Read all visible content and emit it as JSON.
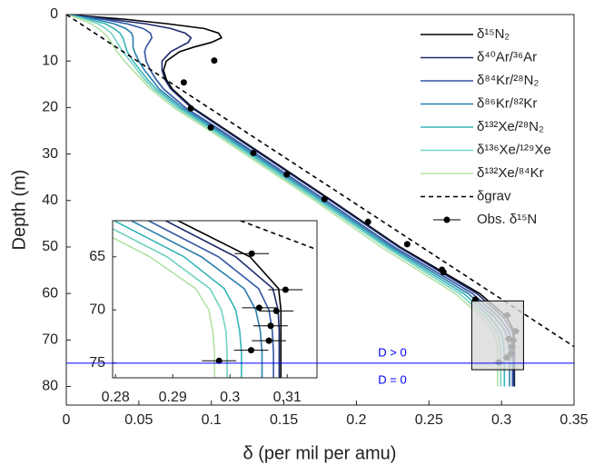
{
  "chart_data": {
    "type": "line",
    "xlabel": "δ (per mil per amu)",
    "ylabel": "Depth (m)",
    "xlim": [
      0,
      0.35
    ],
    "ylim": [
      0,
      84
    ],
    "y_inverted": true,
    "xticks": [
      0,
      0.05,
      0.1,
      0.15,
      0.2,
      0.25,
      0.3,
      0.35
    ],
    "yticks": [
      0,
      10,
      20,
      30,
      40,
      50,
      60,
      70,
      80
    ],
    "legend": "upper right",
    "grid": false,
    "y": [
      0,
      1,
      2,
      3,
      4,
      5,
      6,
      7,
      8,
      10,
      12,
      14,
      16,
      20,
      25,
      30,
      40,
      50,
      60,
      65,
      68,
      70,
      72,
      74,
      76,
      80
    ],
    "series": [
      {
        "name": "δ¹⁵N₂",
        "color": "#000000",
        "values": [
          0,
          0.04,
          0.07,
          0.095,
          0.105,
          0.107,
          0.1,
          0.088,
          0.078,
          0.069,
          0.067,
          0.069,
          0.073,
          0.087,
          0.111,
          0.135,
          0.183,
          0.23,
          0.285,
          0.3035,
          0.3085,
          0.3089,
          0.3089,
          0.3089,
          0.3089,
          0.3089
        ]
      },
      {
        "name": "δ⁴⁰Ar/³⁶Ar",
        "color": "#1c2a6b",
        "values": [
          0,
          0.03,
          0.055,
          0.072,
          0.082,
          0.086,
          0.084,
          0.078,
          0.072,
          0.066,
          0.066,
          0.068,
          0.072,
          0.086,
          0.11,
          0.134,
          0.182,
          0.229,
          0.283,
          0.301,
          0.3075,
          0.3084,
          0.3086,
          0.3086,
          0.3086,
          0.3086
        ]
      },
      {
        "name": "δ⁸⁴Kr/²⁸N₂",
        "color": "#2f55a4",
        "values": [
          0,
          0.025,
          0.042,
          0.053,
          0.058,
          0.059,
          0.057,
          0.055,
          0.054,
          0.055,
          0.058,
          0.062,
          0.067,
          0.082,
          0.107,
          0.131,
          0.179,
          0.226,
          0.28,
          0.298,
          0.305,
          0.3068,
          0.3074,
          0.3076,
          0.3076,
          0.3076
        ]
      },
      {
        "name": "δ⁸⁶Kr/⁸²Kr",
        "color": "#2a7fae",
        "values": [
          0,
          0.02,
          0.033,
          0.041,
          0.045,
          0.046,
          0.046,
          0.046,
          0.047,
          0.05,
          0.054,
          0.059,
          0.064,
          0.08,
          0.105,
          0.129,
          0.177,
          0.224,
          0.277,
          0.295,
          0.3025,
          0.3045,
          0.3053,
          0.3056,
          0.3056,
          0.3056
        ]
      },
      {
        "name": "δ¹³²Xe/²⁸N₂",
        "color": "#35b4b8",
        "values": [
          0,
          0.016,
          0.027,
          0.033,
          0.037,
          0.039,
          0.04,
          0.041,
          0.042,
          0.046,
          0.051,
          0.056,
          0.062,
          0.078,
          0.103,
          0.127,
          0.175,
          0.222,
          0.274,
          0.292,
          0.299,
          0.301,
          0.3017,
          0.302,
          0.302,
          0.302
        ]
      },
      {
        "name": "δ¹³⁶Xe/¹²⁹Xe",
        "color": "#72d2c2",
        "values": [
          0,
          0.013,
          0.022,
          0.027,
          0.031,
          0.033,
          0.035,
          0.037,
          0.039,
          0.044,
          0.049,
          0.054,
          0.06,
          0.076,
          0.101,
          0.125,
          0.173,
          0.22,
          0.271,
          0.289,
          0.2965,
          0.2985,
          0.2993,
          0.2995,
          0.2995,
          0.2995
        ]
      },
      {
        "name": "δ¹³²Xe/⁸⁴Kr",
        "color": "#b5e2a4",
        "values": [
          0,
          0.01,
          0.017,
          0.022,
          0.026,
          0.029,
          0.031,
          0.033,
          0.035,
          0.04,
          0.046,
          0.052,
          0.058,
          0.074,
          0.099,
          0.123,
          0.171,
          0.217,
          0.268,
          0.286,
          0.294,
          0.2963,
          0.297,
          0.2973,
          0.2973,
          0.2973
        ]
      },
      {
        "name": "δgrav",
        "color": "#000000",
        "dashed": true,
        "values": [
          0,
          0.0049,
          0.0098,
          0.0147,
          0.0196,
          0.0245,
          0.0294,
          0.0343,
          0.0392,
          0.049,
          0.0588,
          0.0686,
          0.0784,
          0.098,
          0.1225,
          0.147,
          0.196,
          0.245,
          0.294,
          0.3185,
          0.3332,
          0.343,
          0.3528,
          0.3626,
          0.3724,
          0.392
        ]
      }
    ],
    "observations": {
      "name": "Obs. δ¹⁵N",
      "color": "#000000",
      "depth": [
        9.9,
        14.6,
        20.2,
        24.3,
        29.8,
        34.4,
        39.7,
        44.6,
        49.4,
        54.9,
        55.4,
        61.3,
        64.7,
        68.1,
        69.8,
        70.1,
        71.5,
        72.9,
        73.8,
        74.8
      ],
      "values": [
        0.102,
        0.081,
        0.0858,
        0.0996,
        0.129,
        0.152,
        0.178,
        0.208,
        0.235,
        0.259,
        0.26,
        0.282,
        0.3038,
        0.3097,
        0.3051,
        0.3081,
        0.3071,
        0.3068,
        0.3037,
        0.2981
      ],
      "xerr": [
        0.002,
        0.002,
        0.002,
        0.002,
        0.002,
        0.002,
        0.002,
        0.002,
        0.002,
        0.002,
        0.002,
        0.002,
        0.003,
        0.003,
        0.003,
        0.003,
        0.003,
        0.003,
        0.003,
        0.003
      ]
    },
    "boundary": {
      "depth": 75,
      "color": "#0000ff"
    },
    "annotations": [
      {
        "text": "D > 0"
      },
      {
        "text": "D = 0"
      }
    ],
    "inset": {
      "xlim": [
        0.2795,
        0.3152
      ],
      "ylim": [
        61.6,
        76.4
      ],
      "xticks": [
        0.28,
        0.29,
        0.3,
        0.31
      ],
      "yticks": [
        65,
        70,
        75
      ]
    }
  }
}
